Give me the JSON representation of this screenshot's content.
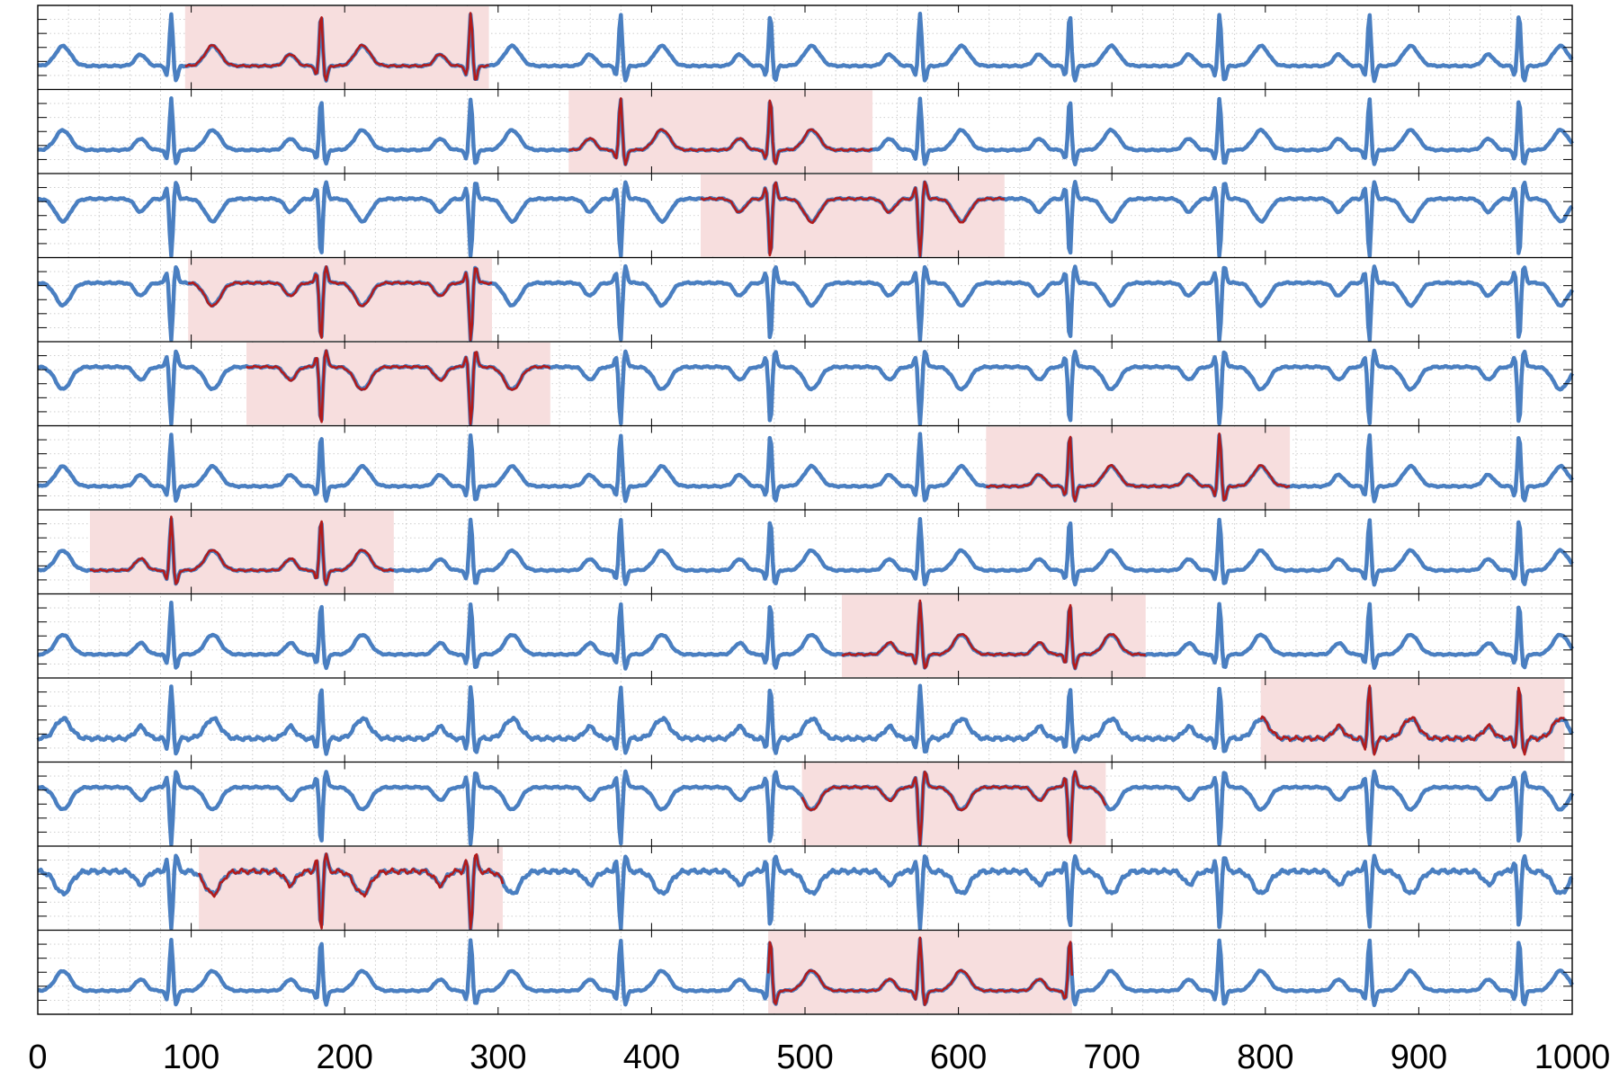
{
  "chart_data": {
    "type": "line",
    "title": "",
    "xlabel": "",
    "ylabel": "",
    "xlim": [
      0,
      1000
    ],
    "x_ticks": [
      "0",
      "100",
      "200",
      "300",
      "400",
      "500",
      "600",
      "700",
      "800",
      "900",
      "1000"
    ],
    "grid": "on",
    "legend": "none",
    "colors": {
      "signal": "#4a7fc1",
      "segment": "#b31b1b",
      "highlight": "#f7dede"
    },
    "leads": [
      {
        "qrs_polarity": 1,
        "highlight_range": [
          96,
          294
        ]
      },
      {
        "qrs_polarity": 1,
        "highlight_range": [
          346,
          544
        ]
      },
      {
        "qrs_polarity": -1,
        "highlight_range": [
          432,
          630
        ]
      },
      {
        "qrs_polarity": -1,
        "highlight_range": [
          98,
          296
        ]
      },
      {
        "qrs_polarity": -1,
        "highlight_range": [
          136,
          334
        ]
      },
      {
        "qrs_polarity": 1,
        "highlight_range": [
          618,
          816
        ]
      },
      {
        "qrs_polarity": 1,
        "highlight_range": [
          34,
          232
        ]
      },
      {
        "qrs_polarity": 1,
        "highlight_range": [
          524,
          722
        ]
      },
      {
        "qrs_polarity": 1,
        "highlight_range": [
          797,
          995
        ]
      },
      {
        "qrs_polarity": -1,
        "highlight_range": [
          498,
          696
        ]
      },
      {
        "qrs_polarity": -1,
        "highlight_range": [
          105,
          303
        ]
      },
      {
        "qrs_polarity": 1,
        "highlight_range": [
          476,
          674
        ]
      }
    ]
  }
}
